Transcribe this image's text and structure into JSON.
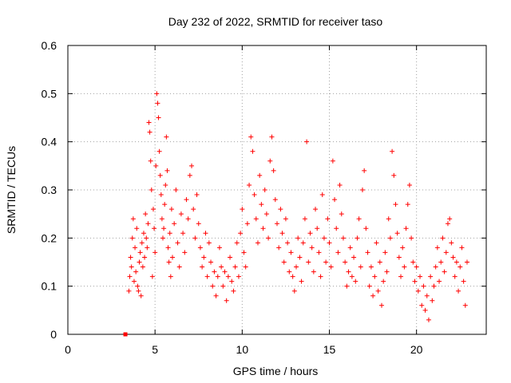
{
  "chart_data": {
    "type": "scatter",
    "title": "Day 232 of 2022, SRMTID for receiver taso",
    "xlabel": "GPS time / hours",
    "ylabel": "SRMTID / TECUs",
    "xlim": [
      0,
      24
    ],
    "ylim": [
      0,
      0.6
    ],
    "xticks": [
      0,
      5,
      10,
      15,
      20
    ],
    "yticks": [
      0,
      0.1,
      0.2,
      0.3,
      0.4,
      0.5,
      0.6
    ],
    "grid": true,
    "marker": "+",
    "color": "#ff0000",
    "outlier_marker": {
      "x": 3.3,
      "y": 0.0,
      "shape": "square"
    },
    "points": [
      [
        3.5,
        0.09
      ],
      [
        3.55,
        0.12
      ],
      [
        3.6,
        0.16
      ],
      [
        3.65,
        0.14
      ],
      [
        3.7,
        0.2
      ],
      [
        3.75,
        0.24
      ],
      [
        3.8,
        0.11
      ],
      [
        3.85,
        0.18
      ],
      [
        3.9,
        0.13
      ],
      [
        3.95,
        0.22
      ],
      [
        4.0,
        0.1
      ],
      [
        4.05,
        0.09
      ],
      [
        4.1,
        0.15
      ],
      [
        4.15,
        0.17
      ],
      [
        4.2,
        0.08
      ],
      [
        4.25,
        0.19
      ],
      [
        4.3,
        0.14
      ],
      [
        4.35,
        0.21
      ],
      [
        4.4,
        0.16
      ],
      [
        4.45,
        0.25
      ],
      [
        4.5,
        0.2
      ],
      [
        4.55,
        0.18
      ],
      [
        4.6,
        0.23
      ],
      [
        4.65,
        0.44
      ],
      [
        4.7,
        0.42
      ],
      [
        4.75,
        0.36
      ],
      [
        4.8,
        0.3
      ],
      [
        4.85,
        0.12
      ],
      [
        4.9,
        0.26
      ],
      [
        4.95,
        0.22
      ],
      [
        5.0,
        0.17
      ],
      [
        5.05,
        0.35
      ],
      [
        5.1,
        0.5
      ],
      [
        5.15,
        0.48
      ],
      [
        5.2,
        0.45
      ],
      [
        5.25,
        0.38
      ],
      [
        5.3,
        0.33
      ],
      [
        5.35,
        0.29
      ],
      [
        5.4,
        0.24
      ],
      [
        5.45,
        0.2
      ],
      [
        5.5,
        0.22
      ],
      [
        5.55,
        0.27
      ],
      [
        5.6,
        0.31
      ],
      [
        5.65,
        0.41
      ],
      [
        5.7,
        0.34
      ],
      [
        5.75,
        0.18
      ],
      [
        5.8,
        0.15
      ],
      [
        5.85,
        0.21
      ],
      [
        5.9,
        0.12
      ],
      [
        5.95,
        0.26
      ],
      [
        6.0,
        0.16
      ],
      [
        6.1,
        0.23
      ],
      [
        6.2,
        0.3
      ],
      [
        6.3,
        0.19
      ],
      [
        6.4,
        0.14
      ],
      [
        6.5,
        0.25
      ],
      [
        6.6,
        0.21
      ],
      [
        6.7,
        0.17
      ],
      [
        6.8,
        0.28
      ],
      [
        6.9,
        0.24
      ],
      [
        7.0,
        0.33
      ],
      [
        7.1,
        0.35
      ],
      [
        7.2,
        0.26
      ],
      [
        7.3,
        0.2
      ],
      [
        7.4,
        0.29
      ],
      [
        7.5,
        0.23
      ],
      [
        7.6,
        0.18
      ],
      [
        7.7,
        0.14
      ],
      [
        7.8,
        0.16
      ],
      [
        7.9,
        0.21
      ],
      [
        8.0,
        0.12
      ],
      [
        8.1,
        0.19
      ],
      [
        8.2,
        0.15
      ],
      [
        8.3,
        0.1
      ],
      [
        8.4,
        0.13
      ],
      [
        8.5,
        0.08
      ],
      [
        8.6,
        0.12
      ],
      [
        8.7,
        0.18
      ],
      [
        8.8,
        0.14
      ],
      [
        8.9,
        0.1
      ],
      [
        9.0,
        0.13
      ],
      [
        9.1,
        0.07
      ],
      [
        9.2,
        0.12
      ],
      [
        9.3,
        0.16
      ],
      [
        9.4,
        0.11
      ],
      [
        9.5,
        0.09
      ],
      [
        9.6,
        0.14
      ],
      [
        9.7,
        0.19
      ],
      [
        9.8,
        0.12
      ],
      [
        9.9,
        0.21
      ],
      [
        10.0,
        0.26
      ],
      [
        10.1,
        0.17
      ],
      [
        10.2,
        0.14
      ],
      [
        10.3,
        0.23
      ],
      [
        10.4,
        0.31
      ],
      [
        10.5,
        0.41
      ],
      [
        10.6,
        0.38
      ],
      [
        10.7,
        0.29
      ],
      [
        10.8,
        0.24
      ],
      [
        10.9,
        0.19
      ],
      [
        11.0,
        0.33
      ],
      [
        11.1,
        0.27
      ],
      [
        11.2,
        0.22
      ],
      [
        11.3,
        0.3
      ],
      [
        11.4,
        0.25
      ],
      [
        11.5,
        0.2
      ],
      [
        11.6,
        0.36
      ],
      [
        11.7,
        0.41
      ],
      [
        11.8,
        0.34
      ],
      [
        11.9,
        0.28
      ],
      [
        12.0,
        0.23
      ],
      [
        12.1,
        0.18
      ],
      [
        12.2,
        0.26
      ],
      [
        12.3,
        0.21
      ],
      [
        12.4,
        0.15
      ],
      [
        12.5,
        0.24
      ],
      [
        12.6,
        0.19
      ],
      [
        12.7,
        0.13
      ],
      [
        12.8,
        0.17
      ],
      [
        12.9,
        0.12
      ],
      [
        13.0,
        0.09
      ],
      [
        13.1,
        0.14
      ],
      [
        13.2,
        0.2
      ],
      [
        13.3,
        0.16
      ],
      [
        13.4,
        0.11
      ],
      [
        13.5,
        0.19
      ],
      [
        13.6,
        0.24
      ],
      [
        13.7,
        0.4
      ],
      [
        13.8,
        0.15
      ],
      [
        13.9,
        0.21
      ],
      [
        14.0,
        0.18
      ],
      [
        14.1,
        0.13
      ],
      [
        14.2,
        0.26
      ],
      [
        14.3,
        0.22
      ],
      [
        14.4,
        0.17
      ],
      [
        14.5,
        0.12
      ],
      [
        14.6,
        0.29
      ],
      [
        14.7,
        0.2
      ],
      [
        14.8,
        0.15
      ],
      [
        14.9,
        0.24
      ],
      [
        15.0,
        0.19
      ],
      [
        15.1,
        0.14
      ],
      [
        15.2,
        0.36
      ],
      [
        15.3,
        0.28
      ],
      [
        15.4,
        0.22
      ],
      [
        15.5,
        0.17
      ],
      [
        15.6,
        0.31
      ],
      [
        15.7,
        0.25
      ],
      [
        15.8,
        0.2
      ],
      [
        15.9,
        0.15
      ],
      [
        16.0,
        0.1
      ],
      [
        16.1,
        0.13
      ],
      [
        16.2,
        0.18
      ],
      [
        16.3,
        0.12
      ],
      [
        16.4,
        0.16
      ],
      [
        16.5,
        0.11
      ],
      [
        16.6,
        0.2
      ],
      [
        16.7,
        0.24
      ],
      [
        16.8,
        0.14
      ],
      [
        16.9,
        0.3
      ],
      [
        17.0,
        0.34
      ],
      [
        17.1,
        0.22
      ],
      [
        17.2,
        0.17
      ],
      [
        17.3,
        0.1
      ],
      [
        17.4,
        0.14
      ],
      [
        17.5,
        0.08
      ],
      [
        17.6,
        0.12
      ],
      [
        17.7,
        0.19
      ],
      [
        17.8,
        0.09
      ],
      [
        17.9,
        0.15
      ],
      [
        18.0,
        0.06
      ],
      [
        18.1,
        0.11
      ],
      [
        18.2,
        0.17
      ],
      [
        18.3,
        0.13
      ],
      [
        18.4,
        0.24
      ],
      [
        18.5,
        0.2
      ],
      [
        18.6,
        0.38
      ],
      [
        18.7,
        0.33
      ],
      [
        18.8,
        0.27
      ],
      [
        18.9,
        0.21
      ],
      [
        19.0,
        0.16
      ],
      [
        19.1,
        0.12
      ],
      [
        19.2,
        0.18
      ],
      [
        19.3,
        0.14
      ],
      [
        19.4,
        0.22
      ],
      [
        19.5,
        0.27
      ],
      [
        19.6,
        0.31
      ],
      [
        19.7,
        0.2
      ],
      [
        19.8,
        0.15
      ],
      [
        19.9,
        0.11
      ],
      [
        20.0,
        0.14
      ],
      [
        20.1,
        0.09
      ],
      [
        20.2,
        0.12
      ],
      [
        20.3,
        0.06
      ],
      [
        20.4,
        0.1
      ],
      [
        20.5,
        0.05
      ],
      [
        20.6,
        0.08
      ],
      [
        20.7,
        0.03
      ],
      [
        20.8,
        0.12
      ],
      [
        20.9,
        0.07
      ],
      [
        21.0,
        0.1
      ],
      [
        21.1,
        0.14
      ],
      [
        21.2,
        0.18
      ],
      [
        21.3,
        0.11
      ],
      [
        21.4,
        0.15
      ],
      [
        21.5,
        0.2
      ],
      [
        21.6,
        0.13
      ],
      [
        21.7,
        0.17
      ],
      [
        21.8,
        0.23
      ],
      [
        21.9,
        0.24
      ],
      [
        22.0,
        0.19
      ],
      [
        22.1,
        0.16
      ],
      [
        22.2,
        0.12
      ],
      [
        22.3,
        0.15
      ],
      [
        22.4,
        0.09
      ],
      [
        22.5,
        0.14
      ],
      [
        22.6,
        0.18
      ],
      [
        22.7,
        0.11
      ],
      [
        22.8,
        0.06
      ],
      [
        22.9,
        0.15
      ]
    ]
  }
}
